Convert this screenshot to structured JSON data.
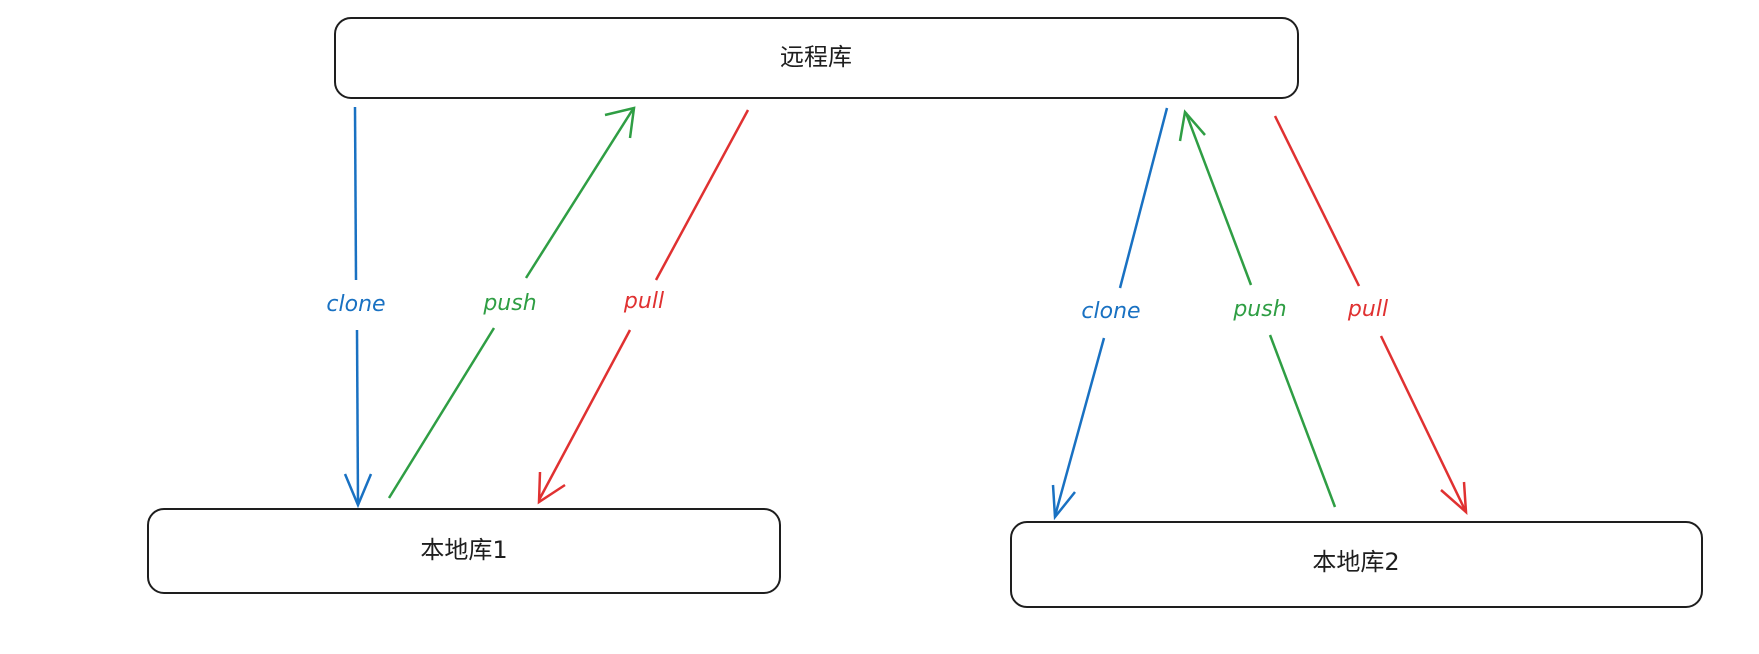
{
  "nodes": {
    "remote": {
      "label": "远程库"
    },
    "local1": {
      "label": "本地库1"
    },
    "local2": {
      "label": "本地库2"
    }
  },
  "edges": {
    "local1_clone": {
      "label": "clone",
      "color": "#1971c2"
    },
    "local1_push": {
      "label": "push",
      "color": "#2f9e44"
    },
    "local1_pull": {
      "label": "pull",
      "color": "#e03131"
    },
    "local2_clone": {
      "label": "clone",
      "color": "#1971c2"
    },
    "local2_push": {
      "label": "push",
      "color": "#2f9e44"
    },
    "local2_pull": {
      "label": "pull",
      "color": "#e03131"
    }
  },
  "colors": {
    "stroke": "#1e1e1e",
    "background": "#ffffff"
  }
}
